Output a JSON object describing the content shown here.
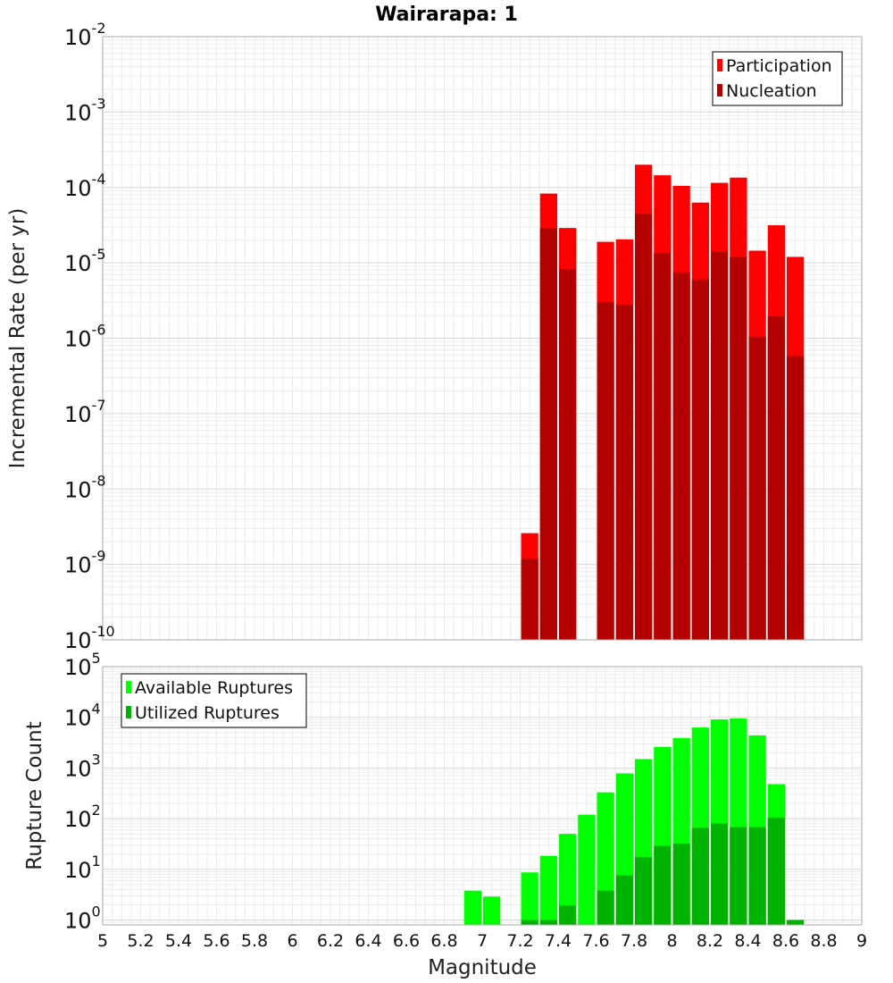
{
  "chart_data": {
    "title": "Wairarapa: 1",
    "xlabel": "Magnitude",
    "x_ticks": [
      "5",
      "5.2",
      "5.4",
      "5.6",
      "5.8",
      "6",
      "6.2",
      "6.4",
      "6.6",
      "6.8",
      "7",
      "7.2",
      "7.4",
      "7.6",
      "7.8",
      "8",
      "8.2",
      "8.4",
      "8.6",
      "8.8",
      "9"
    ],
    "xlim": [
      5,
      9
    ],
    "bin_width": 0.1,
    "panels": [
      {
        "id": "rate",
        "type": "bar",
        "ylabel": "Incremental Rate (per yr)",
        "yscale": "log",
        "ylim": [
          1e-10,
          0.01
        ],
        "y_ticks": [
          {
            "base": "10",
            "exp": "-10"
          },
          {
            "base": "10",
            "exp": "-9"
          },
          {
            "base": "10",
            "exp": "-8"
          },
          {
            "base": "10",
            "exp": "-7"
          },
          {
            "base": "10",
            "exp": "-6"
          },
          {
            "base": "10",
            "exp": "-5"
          },
          {
            "base": "10",
            "exp": "-4"
          },
          {
            "base": "10",
            "exp": "-3"
          },
          {
            "base": "10",
            "exp": "-2"
          }
        ],
        "legend_position": "top-right",
        "grid": true,
        "series": [
          {
            "name": "Participation",
            "color": "#ff0000",
            "points": [
              [
                7.25,
                2.6e-09
              ],
              [
                7.35,
                8.3e-05
              ],
              [
                7.45,
                2.9e-05
              ],
              [
                7.65,
                1.9e-05
              ],
              [
                7.75,
                2.05e-05
              ],
              [
                7.85,
                0.0002
              ],
              [
                7.95,
                0.000145
              ],
              [
                8.05,
                0.000105
              ],
              [
                8.15,
                6.3e-05
              ],
              [
                8.25,
                0.000115
              ],
              [
                8.35,
                0.000135
              ],
              [
                8.45,
                1.45e-05
              ],
              [
                8.55,
                3.15e-05
              ],
              [
                8.65,
                1.2e-05
              ]
            ]
          },
          {
            "name": "Nucleation",
            "color": "#b30000",
            "points": [
              [
                7.25,
                1.2e-09
              ],
              [
                7.35,
                2.9e-05
              ],
              [
                7.45,
                8.3e-06
              ],
              [
                7.65,
                3e-06
              ],
              [
                7.75,
                2.8e-06
              ],
              [
                7.85,
                4.5e-05
              ],
              [
                7.95,
                1.35e-05
              ],
              [
                8.05,
                7.5e-06
              ],
              [
                8.15,
                6e-06
              ],
              [
                8.25,
                1.4e-05
              ],
              [
                8.35,
                1.2e-05
              ],
              [
                8.45,
                1.05e-06
              ],
              [
                8.55,
                1.95e-06
              ],
              [
                8.65,
                5.8e-07
              ]
            ]
          }
        ]
      },
      {
        "id": "count",
        "type": "bar",
        "ylabel": "Rupture Count",
        "yscale": "log",
        "ylim": [
          0.8,
          100000
        ],
        "y_ticks": [
          {
            "base": "10",
            "exp": "0"
          },
          {
            "base": "10",
            "exp": "1"
          },
          {
            "base": "10",
            "exp": "2"
          },
          {
            "base": "10",
            "exp": "3"
          },
          {
            "base": "10",
            "exp": "4"
          },
          {
            "base": "10",
            "exp": "5"
          }
        ],
        "legend_position": "top-left",
        "grid": true,
        "series": [
          {
            "name": "Available Ruptures",
            "color": "#00ff00",
            "points": [
              [
                6.95,
                3.8
              ],
              [
                7.05,
                2.9
              ],
              [
                7.25,
                8.7
              ],
              [
                7.35,
                18.5
              ],
              [
                7.45,
                50
              ],
              [
                7.55,
                120
              ],
              [
                7.65,
                330
              ],
              [
                7.75,
                780
              ],
              [
                7.85,
                1500
              ],
              [
                7.95,
                2600
              ],
              [
                8.05,
                3900
              ],
              [
                8.15,
                6300
              ],
              [
                8.25,
                9100
              ],
              [
                8.35,
                9500
              ],
              [
                8.45,
                4400
              ],
              [
                8.55,
                480
              ]
            ]
          },
          {
            "name": "Utilized Ruptures",
            "color": "#00b300",
            "points": [
              [
                7.25,
                1.0
              ],
              [
                7.35,
                1.0
              ],
              [
                7.45,
                1.95
              ],
              [
                7.65,
                3.8
              ],
              [
                7.75,
                7.6
              ],
              [
                7.85,
                17.5
              ],
              [
                7.95,
                29
              ],
              [
                8.05,
                32
              ],
              [
                8.15,
                66
              ],
              [
                8.25,
                80
              ],
              [
                8.35,
                68
              ],
              [
                8.45,
                68
              ],
              [
                8.55,
                105
              ],
              [
                8.65,
                1.0
              ]
            ]
          }
        ]
      }
    ]
  }
}
